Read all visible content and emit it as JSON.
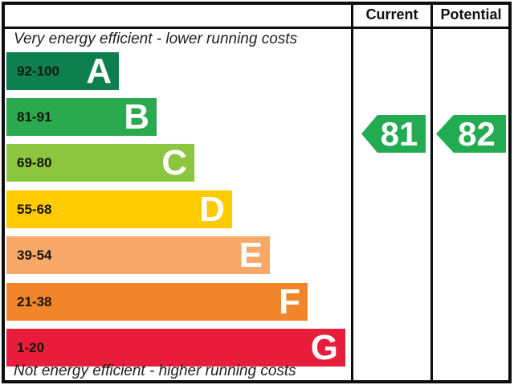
{
  "header": {
    "current": "Current",
    "potential": "Potential"
  },
  "captions": {
    "top": "Very energy efficient - lower running costs",
    "bottom": "Not energy efficient - higher running costs"
  },
  "chart_data": {
    "type": "bar",
    "chart_kind": "energy-efficiency-rating",
    "orientation": "horizontal",
    "categories": [
      "A",
      "B",
      "C",
      "D",
      "E",
      "F",
      "G"
    ],
    "bands": [
      {
        "grade": "A",
        "range": "92-100",
        "min": 92,
        "max": 100,
        "color": "#0d7f4e"
      },
      {
        "grade": "B",
        "range": "81-91",
        "min": 81,
        "max": 91,
        "color": "#2ba94e"
      },
      {
        "grade": "C",
        "range": "69-80",
        "min": 69,
        "max": 80,
        "color": "#8cc63f"
      },
      {
        "grade": "D",
        "range": "55-68",
        "min": 55,
        "max": 68,
        "color": "#fecb00"
      },
      {
        "grade": "E",
        "range": "39-54",
        "min": 39,
        "max": 54,
        "color": "#f8a869"
      },
      {
        "grade": "F",
        "range": "21-38",
        "min": 21,
        "max": 38,
        "color": "#f1852a"
      },
      {
        "grade": "G",
        "range": "1-20",
        "min": 1,
        "max": 20,
        "color": "#e81d3b"
      }
    ],
    "current": {
      "value": "81",
      "band": "B",
      "color": "#22ab50"
    },
    "potential": {
      "value": "82",
      "band": "B",
      "color": "#22ab50"
    }
  }
}
